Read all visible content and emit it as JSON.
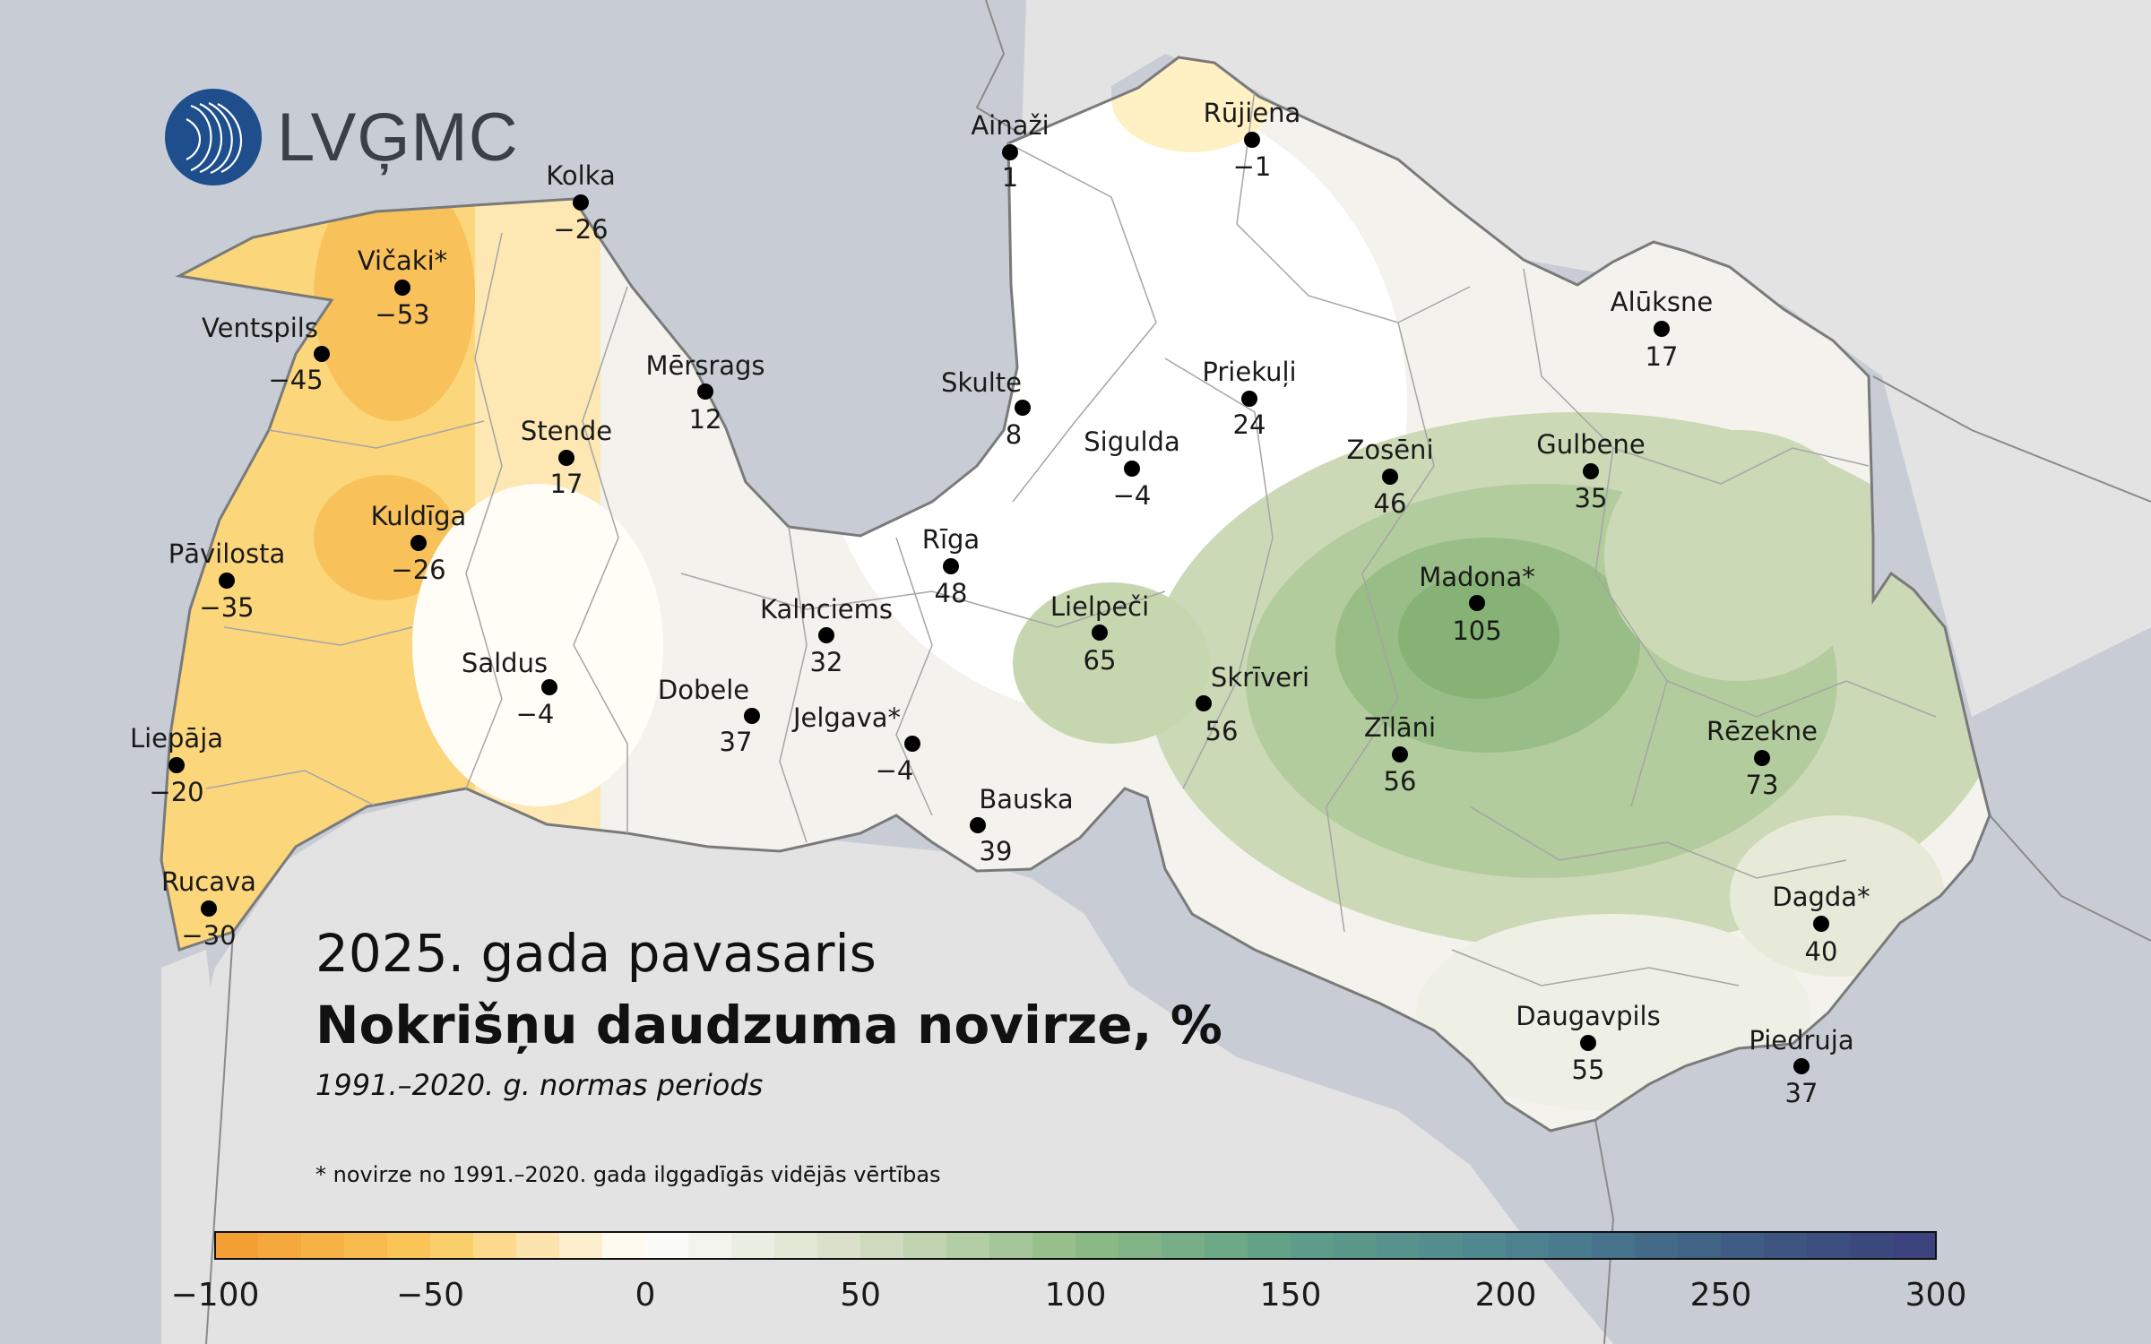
{
  "logo": {
    "text": "LVĢMC",
    "icon": "lvgmc-waves-logo",
    "color": "#1e4e8c"
  },
  "title": {
    "season": "2025. gada pavasaris",
    "main": "Nokrišņu daudzuma novirze, %",
    "period": "1991.–2020. g. normas periods"
  },
  "footnote": "* novirze no 1991.–2020. gada ilggadīgās vidējās vērtības",
  "stations": [
    {
      "name": "Ainaži",
      "value": "1"
    },
    {
      "name": "Rūjiena",
      "value": "−1"
    },
    {
      "name": "Kolka",
      "value": "−26"
    },
    {
      "name": "Vičaki*",
      "value": "−53"
    },
    {
      "name": "Ventspils",
      "value": "−45"
    },
    {
      "name": "Mērsrags",
      "value": "12"
    },
    {
      "name": "Skulte",
      "value": "8"
    },
    {
      "name": "Priekuļi",
      "value": "24"
    },
    {
      "name": "Alūksne",
      "value": "17"
    },
    {
      "name": "Stende",
      "value": "17"
    },
    {
      "name": "Sigulda",
      "value": "−4"
    },
    {
      "name": "Zosēni",
      "value": "46"
    },
    {
      "name": "Gulbene",
      "value": "35"
    },
    {
      "name": "Kuldīga",
      "value": "−26"
    },
    {
      "name": "Pāvilosta",
      "value": "−35"
    },
    {
      "name": "Rīga",
      "value": "48"
    },
    {
      "name": "Madona*",
      "value": "105"
    },
    {
      "name": "Kalnciems",
      "value": "32"
    },
    {
      "name": "Lielpeči",
      "value": "65"
    },
    {
      "name": "Saldus",
      "value": "−4"
    },
    {
      "name": "Dobele",
      "value": "37"
    },
    {
      "name": "Skrīveri",
      "value": "56"
    },
    {
      "name": "Jelgava*",
      "value": "−4"
    },
    {
      "name": "Zīlāni",
      "value": "56"
    },
    {
      "name": "Rēzekne",
      "value": "73"
    },
    {
      "name": "Liepāja",
      "value": "−20"
    },
    {
      "name": "Bauska",
      "value": "39"
    },
    {
      "name": "Rucava",
      "value": "−30"
    },
    {
      "name": "Dagda*",
      "value": "40"
    },
    {
      "name": "Daugavpils",
      "value": "55"
    },
    {
      "name": "Piedruja",
      "value": "37"
    }
  ],
  "colorbar": {
    "ticks": [
      "−100",
      "−50",
      "0",
      "50",
      "100",
      "150",
      "200",
      "250",
      "300"
    ],
    "min": -100,
    "max": 300,
    "step": 10,
    "colors": {
      "-100": "#f39a2e",
      "-50": "#fbc95c",
      "0": "#ffffff",
      "50": "#d6ddc4",
      "100": "#8fbc86",
      "150": "#5f9f88",
      "200": "#4e8590",
      "250": "#405f85",
      "300": "#3a3f7c"
    }
  },
  "colors": {
    "sea": "#c8cdd5",
    "neighbor_land": "#e3e3e3",
    "border": "#8a8a8a",
    "marker": "#000000"
  }
}
